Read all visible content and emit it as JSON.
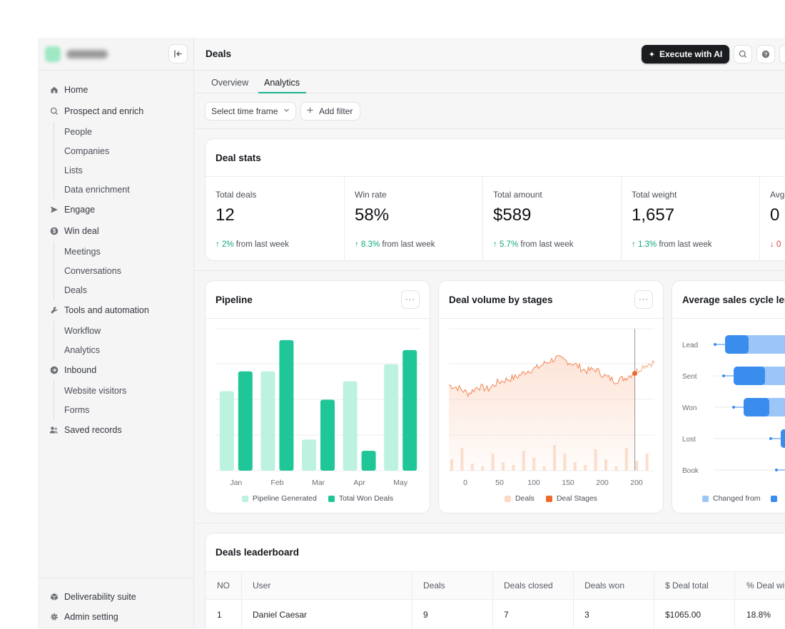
{
  "header": {
    "title": "Deals",
    "ai_button": "Execute with AI"
  },
  "tabs": [
    {
      "label": "Overview",
      "active": false
    },
    {
      "label": "Analytics",
      "active": true
    }
  ],
  "filters": {
    "time_frame": "Select time frame",
    "add_filter": "Add filter"
  },
  "sidebar": {
    "items": [
      {
        "label": "Home",
        "icon": "home-icon"
      },
      {
        "label": "Prospect and enrich",
        "icon": "search-icon"
      },
      {
        "label": "People",
        "sub": true
      },
      {
        "label": "Companies",
        "sub": true
      },
      {
        "label": "Lists",
        "sub": true
      },
      {
        "label": "Data enrichment",
        "sub": true
      },
      {
        "label": "Engage",
        "icon": "send-icon"
      },
      {
        "label": "Win deal",
        "icon": "dollar-icon"
      },
      {
        "label": "Meetings",
        "sub": true
      },
      {
        "label": "Conversations",
        "sub": true
      },
      {
        "label": "Deals",
        "sub": true
      },
      {
        "label": "Tools and automation",
        "icon": "wrench-icon"
      },
      {
        "label": "Workflow",
        "sub": true
      },
      {
        "label": "Analytics",
        "sub": true
      },
      {
        "label": "Inbound",
        "icon": "inbound-icon"
      },
      {
        "label": "Website visitors",
        "sub": true
      },
      {
        "label": "Forms",
        "sub": true
      },
      {
        "label": "Saved records",
        "icon": "users-icon"
      }
    ],
    "bottom": [
      {
        "label": "Deliverability suite",
        "icon": "box-icon"
      },
      {
        "label": "Admin setting",
        "icon": "gear-icon"
      }
    ]
  },
  "deal_stats": {
    "title": "Deal stats",
    "stats": [
      {
        "label": "Total deals",
        "value": "12",
        "change": "2%",
        "direction": "up",
        "suffix": "from last week"
      },
      {
        "label": "Win rate",
        "value": "58%",
        "change": "8.3%",
        "direction": "up",
        "suffix": "from last week"
      },
      {
        "label": "Total amount",
        "value": "$589",
        "change": "5.7%",
        "direction": "up",
        "suffix": "from last week"
      },
      {
        "label": "Total weight",
        "value": "1,657",
        "change": "1.3%",
        "direction": "up",
        "suffix": "from last week"
      },
      {
        "label": "Avg.",
        "value": "0",
        "change": "0",
        "direction": "down",
        "suffix": ""
      }
    ]
  },
  "pipeline": {
    "title": "Pipeline",
    "legend": [
      "Pipeline Generated",
      "Total Won Deals"
    ]
  },
  "deal_volume": {
    "title": "Deal volume by stages",
    "legend": [
      "Deals",
      "Deal Stages"
    ]
  },
  "sales_cycle": {
    "title": "Average sales cycle len",
    "legend": [
      "Changed from",
      ""
    ]
  },
  "colors": {
    "accent": "#19b38a",
    "pipeline_light": "#bdf2e0",
    "pipeline_dark": "#1fc697",
    "deals_light": "#fcd8c6",
    "deal_stage": "#ee6a2c",
    "cycle_light": "#9cc6f8",
    "cycle_dark": "#3b8ded",
    "up": "#12a67a",
    "down": "#d93a3a"
  },
  "chart_data": [
    {
      "type": "bar",
      "categories": [
        "Jan",
        "Feb",
        "Mar",
        "Apr",
        "May"
      ],
      "series": [
        {
          "name": "Pipeline Generated",
          "values": [
            56,
            70,
            22,
            63,
            75
          ]
        },
        {
          "name": "Total Won Deals",
          "values": [
            70,
            92,
            50,
            14,
            85
          ]
        }
      ],
      "ylim": [
        0,
        100
      ]
    },
    {
      "type": "area",
      "x_ticks": [
        "0",
        "50",
        "100",
        "150",
        "200",
        "200"
      ],
      "series": [
        {
          "name": "Deals",
          "values": [
            8,
            16,
            5,
            3,
            12,
            6,
            4,
            14,
            9,
            3,
            18,
            12,
            6,
            4,
            15,
            8,
            3,
            16,
            7,
            12
          ]
        },
        {
          "name": "Deal Stages",
          "values": [
            60,
            58,
            54,
            59,
            57,
            62,
            64,
            66,
            70,
            72,
            76,
            79,
            77,
            74,
            70,
            71,
            66,
            63,
            65,
            69,
            74,
            76
          ]
        }
      ],
      "marker_index": 19
    },
    {
      "type": "bar",
      "categories": [
        "Lead",
        "Sent",
        "Won",
        "Lost",
        "Book"
      ],
      "series": [
        {
          "name": "Changed from",
          "values": [
            20,
            26,
            24,
            0,
            0
          ]
        },
        {
          "name": "",
          "values": [
            33,
            44,
            36,
            8,
            0
          ]
        }
      ]
    }
  ],
  "leaderboard": {
    "title": "Deals leaderboard",
    "columns": [
      "NO",
      "User",
      "Deals",
      "Deals closed",
      "Deals won",
      "$ Deal total",
      "% Deal wir"
    ],
    "rows": [
      [
        "1",
        "Daniel Caesar",
        "9",
        "7",
        "3",
        "$1065.00",
        "18.8%"
      ]
    ]
  }
}
